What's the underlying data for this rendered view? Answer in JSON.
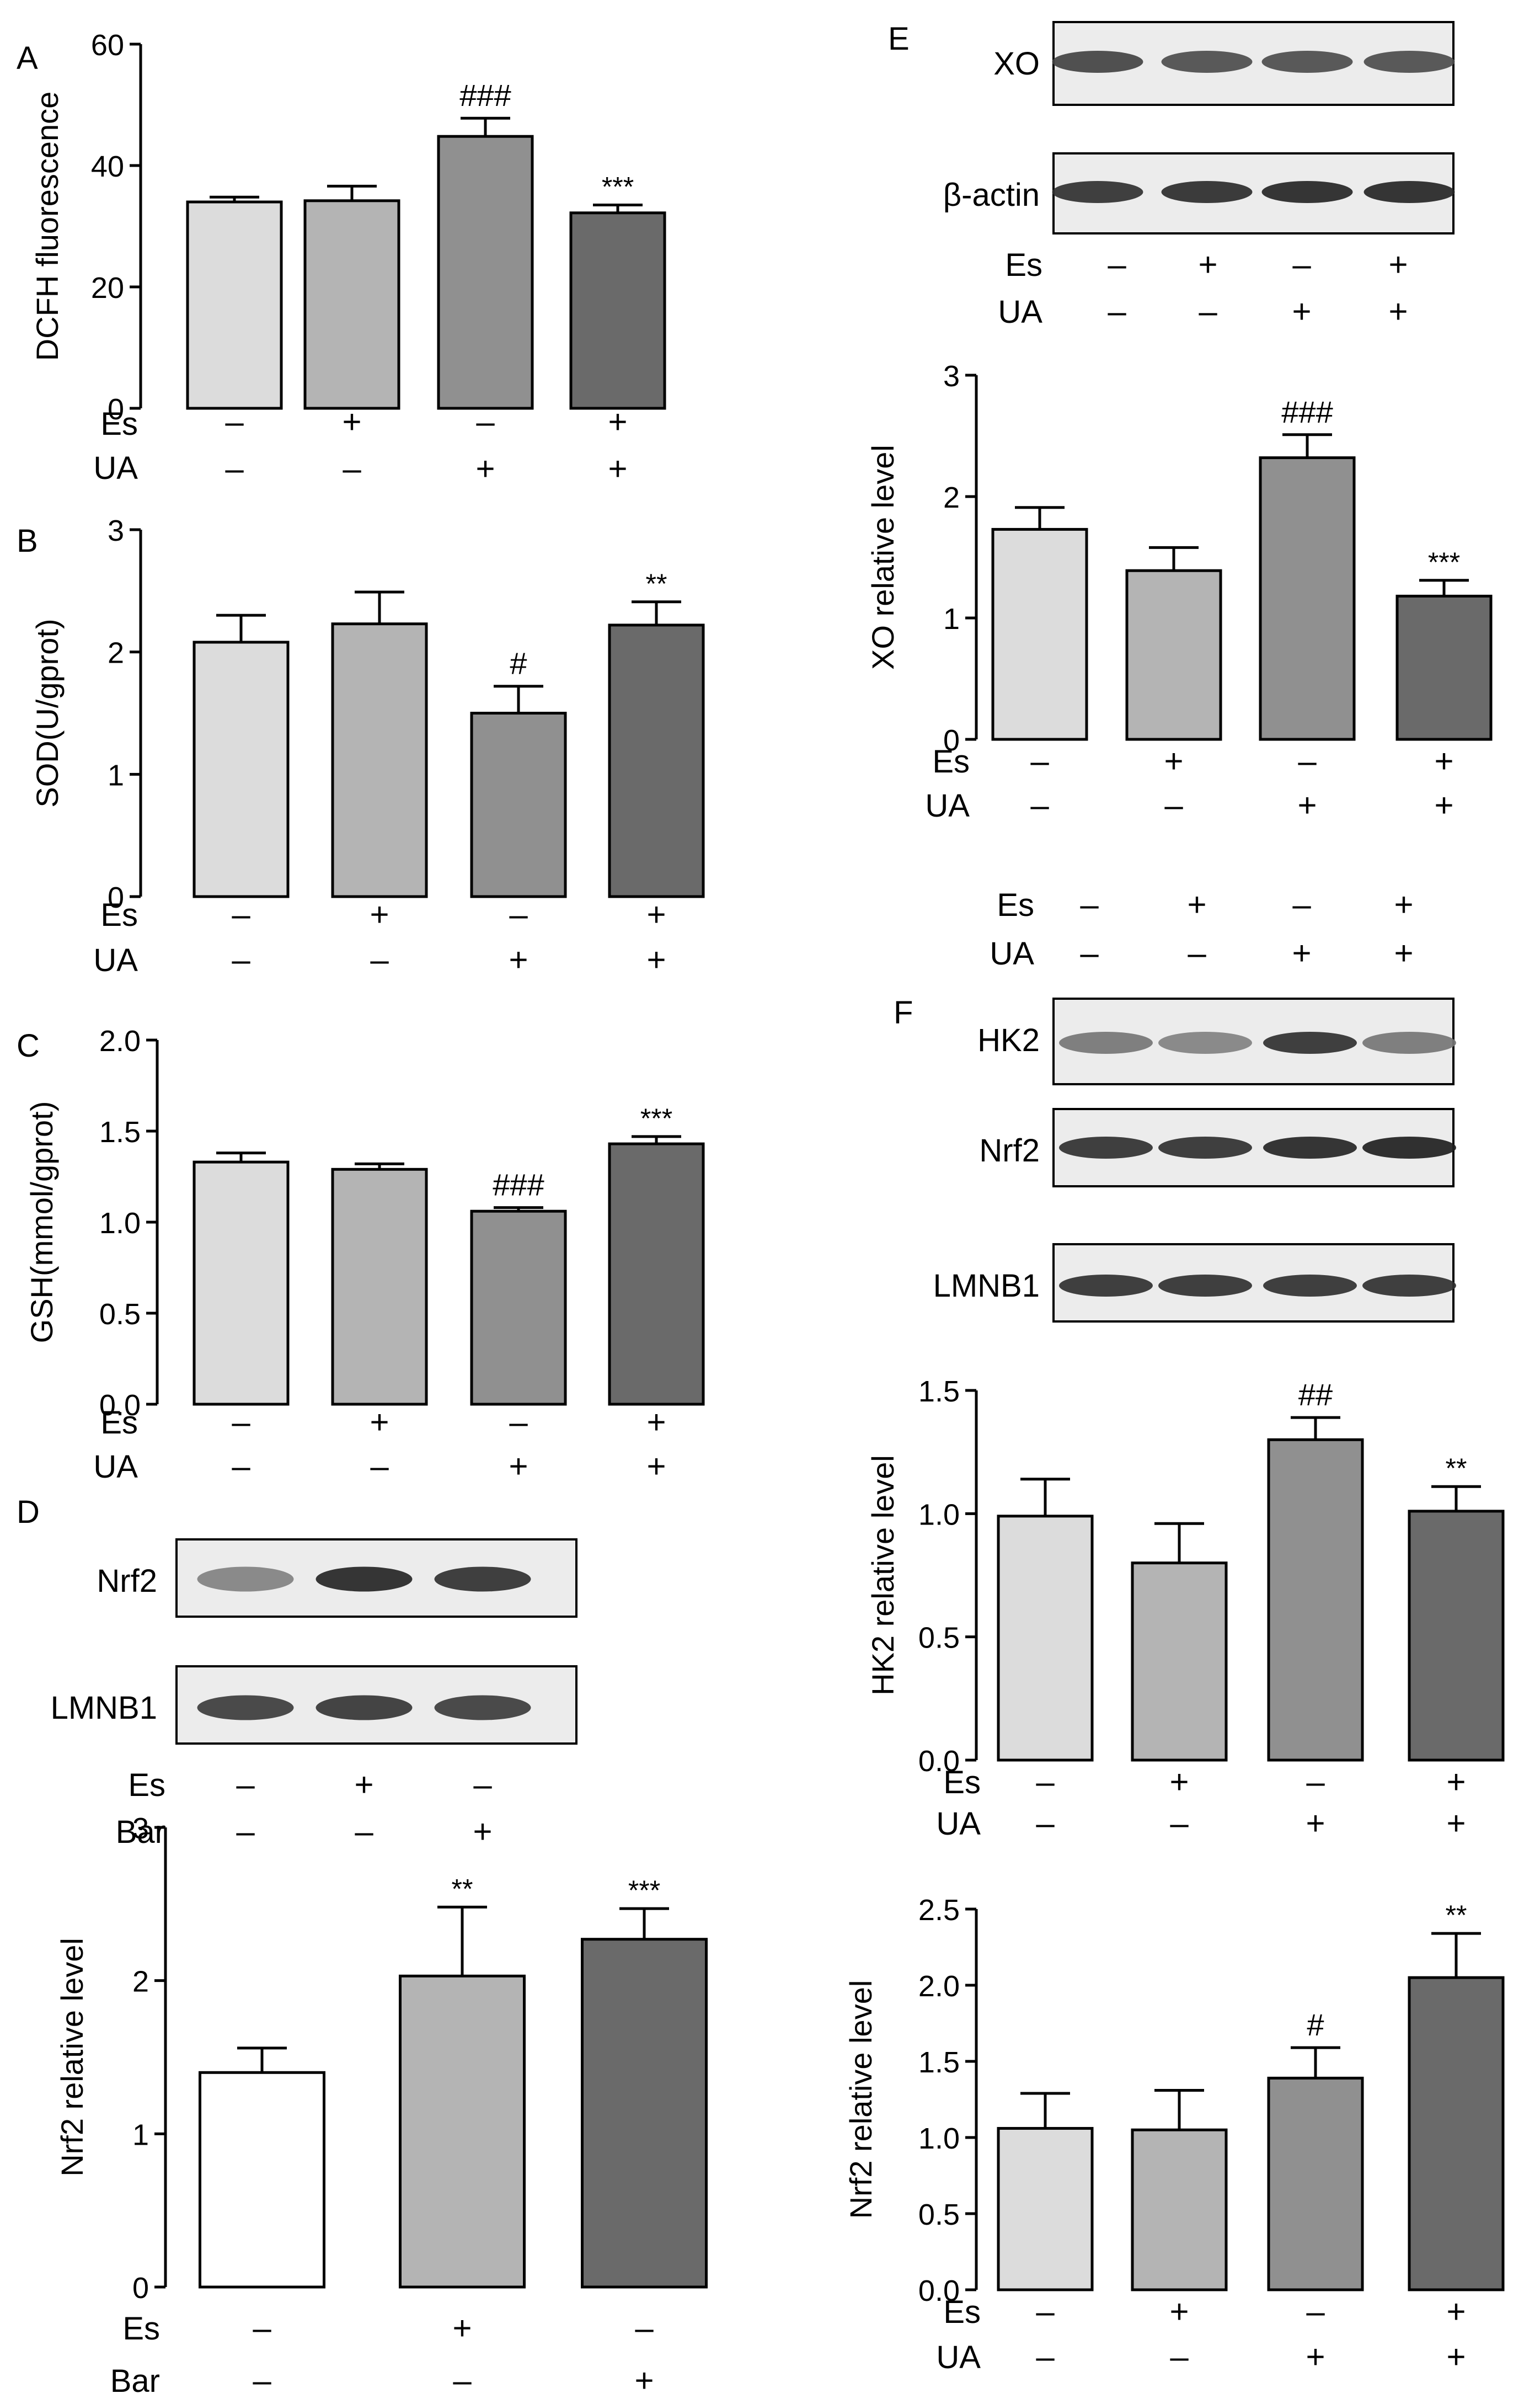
{
  "panels": [
    {
      "letter": "A",
      "ylabel": "DCFH fluorescence",
      "ylim": [
        0,
        60
      ],
      "ticks": [
        "0",
        "20",
        "40",
        "60"
      ],
      "conds": [
        "Es",
        "UA"
      ],
      "signs": [
        [
          "–",
          "+",
          "–",
          "+"
        ],
        [
          "–",
          "–",
          "+",
          "+"
        ]
      ],
      "values": [
        34,
        34.2,
        44.8,
        32.2
      ],
      "errors": [
        0.8,
        2.4,
        3.0,
        1.3
      ],
      "marks": [
        "",
        "",
        "###",
        "***"
      ]
    },
    {
      "letter": "B",
      "ylabel": "SOD(U/gprot)",
      "ylim": [
        0,
        3
      ],
      "ticks": [
        "0",
        "1",
        "2",
        "3"
      ],
      "conds": [
        "Es",
        "UA"
      ],
      "signs": [
        [
          "–",
          "+",
          "–",
          "+"
        ],
        [
          "–",
          "–",
          "+",
          "+"
        ]
      ],
      "values": [
        2.08,
        2.23,
        1.5,
        2.22
      ],
      "errors": [
        0.22,
        0.26,
        0.22,
        0.19
      ],
      "marks": [
        "",
        "",
        "#",
        "**"
      ]
    },
    {
      "letter": "C",
      "ylabel": "GSH(mmol/gprot)",
      "ylim": [
        0,
        2
      ],
      "ticks": [
        "0.0",
        "0.5",
        "1.0",
        "1.5",
        "2.0"
      ],
      "conds": [
        "Es",
        "UA"
      ],
      "signs": [
        [
          "–",
          "+",
          "–",
          "+"
        ],
        [
          "–",
          "–",
          "+",
          "+"
        ]
      ],
      "values": [
        1.33,
        1.29,
        1.06,
        1.43
      ],
      "errors": [
        0.05,
        0.03,
        0.02,
        0.04
      ],
      "marks": [
        "",
        "",
        "###",
        "***"
      ]
    },
    {
      "letter": "D",
      "ylabel": "Nrf2 relative level",
      "ylim": [
        0,
        3
      ],
      "ticks": [
        "0",
        "1",
        "2",
        "3"
      ],
      "conds": [
        "Es",
        "Bar"
      ],
      "signs": [
        [
          "–",
          "+",
          "–"
        ],
        [
          "–",
          "–",
          "+"
        ]
      ],
      "values": [
        1.4,
        2.03,
        2.27
      ],
      "errors": [
        0.16,
        0.45,
        0.2
      ],
      "marks": [
        "",
        "**",
        "***"
      ]
    },
    {
      "letter": "E",
      "ylabel": "XO relative level",
      "ylim": [
        0,
        3
      ],
      "ticks": [
        "0",
        "1",
        "2",
        "3"
      ],
      "conds": [
        "Es",
        "UA"
      ],
      "signs": [
        [
          "–",
          "+",
          "–",
          "+"
        ],
        [
          "–",
          "–",
          "+",
          "+"
        ]
      ],
      "values": [
        1.73,
        1.39,
        2.32,
        1.18
      ],
      "errors": [
        0.18,
        0.19,
        0.19,
        0.13
      ],
      "marks": [
        "",
        "",
        "###",
        "***"
      ]
    },
    {
      "letter": "F",
      "ylabel": "HK2 relative level",
      "ylim": [
        0,
        1.5
      ],
      "ticks": [
        "0.0",
        "0.5",
        "1.0",
        "1.5"
      ],
      "conds": [
        "Es",
        "UA"
      ],
      "signs": [
        [
          "–",
          "+",
          "–",
          "+"
        ],
        [
          "–",
          "–",
          "+",
          "+"
        ]
      ],
      "values": [
        0.99,
        0.8,
        1.3,
        1.01
      ],
      "errors": [
        0.15,
        0.16,
        0.09,
        0.1
      ],
      "marks": [
        "",
        "",
        "##",
        "**"
      ]
    },
    {
      "letter": "",
      "ylabel": "Nrf2 relative level",
      "ylim": [
        0,
        2.5
      ],
      "ticks": [
        "0.0",
        "0.5",
        "1.0",
        "1.5",
        "2.0",
        "2.5"
      ],
      "conds": [
        "Es",
        "UA"
      ],
      "signs": [
        [
          "–",
          "+",
          "–",
          "+"
        ],
        [
          "–",
          "–",
          "+",
          "+"
        ]
      ],
      "values": [
        1.06,
        1.05,
        1.39,
        2.05
      ],
      "errors": [
        0.23,
        0.26,
        0.2,
        0.29
      ],
      "marks": [
        "",
        "",
        "#",
        "**"
      ]
    }
  ],
  "blots": {
    "D": {
      "rows": [
        "Nrf2",
        "LMNB1"
      ],
      "conds": [
        "Es",
        "Bar"
      ],
      "signs": [
        [
          "–",
          "+",
          "–"
        ],
        [
          "–",
          "–",
          "+"
        ]
      ]
    },
    "E": {
      "rows": [
        "XO",
        "β-actin"
      ],
      "conds": [
        "Es",
        "UA"
      ],
      "signs": [
        [
          "–",
          "+",
          "–",
          "+"
        ],
        [
          "–",
          "–",
          "+",
          "+"
        ]
      ]
    },
    "F": {
      "rows": [
        "HK2",
        "Nrf2",
        "LMNB1"
      ],
      "conds": [
        "Es",
        "UA"
      ],
      "signs": [
        [
          "–",
          "+",
          "–",
          "+"
        ],
        [
          "–",
          "–",
          "+",
          "+"
        ]
      ]
    }
  },
  "colors": {
    "c1": "#dcdcdc",
    "c2": "#b4b4b4",
    "c3": "#909090",
    "c4": "#6a6a6a",
    "white": "#ffffff"
  },
  "chart_data": [
    {
      "type": "bar",
      "panel": "A",
      "categories": [
        "Es–/UA–",
        "Es+/UA–",
        "Es–/UA+",
        "Es+/UA+"
      ],
      "values": [
        34,
        34.2,
        44.8,
        32.2
      ],
      "errors": [
        0.8,
        2.4,
        3.0,
        1.3
      ],
      "ylabel": "DCFH fluorescence",
      "ylim": [
        0,
        60
      ],
      "annotations": [
        "",
        "",
        "###",
        "***"
      ]
    },
    {
      "type": "bar",
      "panel": "B",
      "categories": [
        "Es–/UA–",
        "Es+/UA–",
        "Es–/UA+",
        "Es+/UA+"
      ],
      "values": [
        2.08,
        2.23,
        1.5,
        2.22
      ],
      "errors": [
        0.22,
        0.26,
        0.22,
        0.19
      ],
      "ylabel": "SOD(U/gprot)",
      "ylim": [
        0,
        3
      ],
      "annotations": [
        "",
        "",
        "#",
        "**"
      ]
    },
    {
      "type": "bar",
      "panel": "C",
      "categories": [
        "Es–/UA–",
        "Es+/UA–",
        "Es–/UA+",
        "Es+/UA+"
      ],
      "values": [
        1.33,
        1.29,
        1.06,
        1.43
      ],
      "errors": [
        0.05,
        0.03,
        0.02,
        0.04
      ],
      "ylabel": "GSH(mmol/gprot)",
      "ylim": [
        0,
        2
      ],
      "annotations": [
        "",
        "",
        "###",
        "***"
      ]
    },
    {
      "type": "bar",
      "panel": "D",
      "categories": [
        "Es–/Bar–",
        "Es+/Bar–",
        "Es–/Bar+"
      ],
      "values": [
        1.4,
        2.03,
        2.27
      ],
      "errors": [
        0.16,
        0.45,
        0.2
      ],
      "ylabel": "Nrf2 relative level",
      "ylim": [
        0,
        3
      ],
      "annotations": [
        "",
        "**",
        "***"
      ]
    },
    {
      "type": "bar",
      "panel": "E",
      "categories": [
        "Es–/UA–",
        "Es+/UA–",
        "Es–/UA+",
        "Es+/UA+"
      ],
      "values": [
        1.73,
        1.39,
        2.32,
        1.18
      ],
      "errors": [
        0.18,
        0.19,
        0.19,
        0.13
      ],
      "ylabel": "XO relative level",
      "ylim": [
        0,
        3
      ],
      "annotations": [
        "",
        "",
        "###",
        "***"
      ]
    },
    {
      "type": "bar",
      "panel": "F-HK2",
      "categories": [
        "Es–/UA–",
        "Es+/UA–",
        "Es–/UA+",
        "Es+/UA+"
      ],
      "values": [
        0.99,
        0.8,
        1.3,
        1.01
      ],
      "errors": [
        0.15,
        0.16,
        0.09,
        0.1
      ],
      "ylabel": "HK2 relative level",
      "ylim": [
        0,
        1.5
      ],
      "annotations": [
        "",
        "",
        "##",
        "**"
      ]
    },
    {
      "type": "bar",
      "panel": "F-Nrf2",
      "categories": [
        "Es–/UA–",
        "Es+/UA–",
        "Es–/UA+",
        "Es+/UA+"
      ],
      "values": [
        1.06,
        1.05,
        1.39,
        2.05
      ],
      "errors": [
        0.23,
        0.26,
        0.2,
        0.29
      ],
      "ylabel": "Nrf2 relative level",
      "ylim": [
        0,
        2.5
      ],
      "annotations": [
        "",
        "",
        "#",
        "**"
      ]
    }
  ]
}
